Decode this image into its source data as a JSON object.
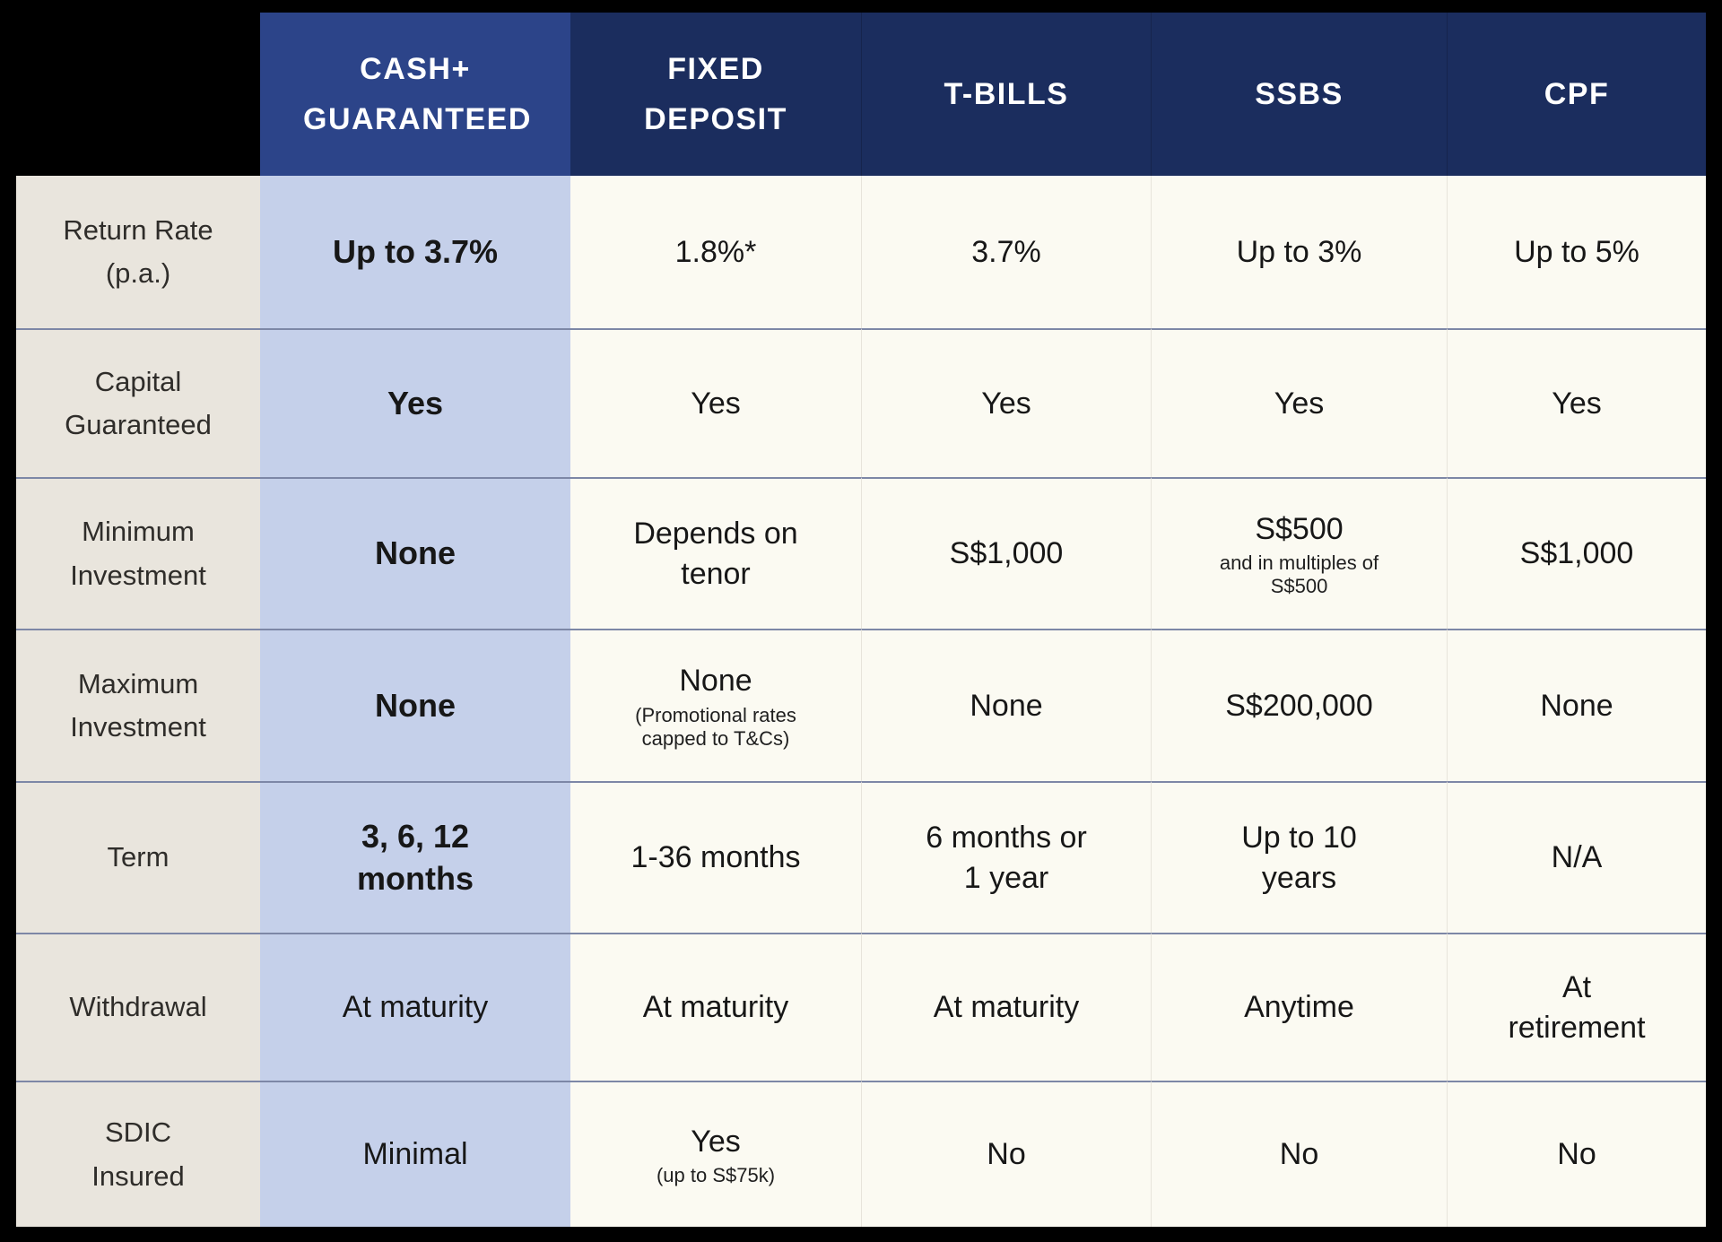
{
  "colors": {
    "header_navy": "#1b2d5e",
    "header_highlight_blue": "#2c4489",
    "highlight_column_blue": "#c5d0ea",
    "label_column_beige": "#e9e5dd",
    "cell_background_cream": "#fbfaf2",
    "row_divider": "#7d87a6",
    "background": "#000000"
  },
  "header": {
    "columns": [
      "CASH+ GUARANTEED",
      "FIXED DEPOSIT",
      "T-BILLS",
      "SSBS",
      "CPF"
    ]
  },
  "rows": [
    {
      "label": "Return Rate (p.a.)",
      "cells": [
        {
          "main": "Up to 3.7%",
          "sub": ""
        },
        {
          "main": "1.8%*",
          "sub": ""
        },
        {
          "main": "3.7%",
          "sub": ""
        },
        {
          "main": "Up to 3%",
          "sub": ""
        },
        {
          "main": "Up to 5%",
          "sub": ""
        }
      ]
    },
    {
      "label": "Capital Guaranteed",
      "cells": [
        {
          "main": "Yes",
          "sub": ""
        },
        {
          "main": "Yes",
          "sub": ""
        },
        {
          "main": "Yes",
          "sub": ""
        },
        {
          "main": "Yes",
          "sub": ""
        },
        {
          "main": "Yes",
          "sub": ""
        }
      ]
    },
    {
      "label": "Minimum Investment",
      "cells": [
        {
          "main": "None",
          "sub": ""
        },
        {
          "main": "Depends on tenor",
          "sub": ""
        },
        {
          "main": "S$1,000",
          "sub": ""
        },
        {
          "main": "S$500",
          "sub": "and in multiples of S$500"
        },
        {
          "main": "S$1,000",
          "sub": ""
        }
      ]
    },
    {
      "label": "Maximum Investment",
      "cells": [
        {
          "main": "None",
          "sub": ""
        },
        {
          "main": "None",
          "sub": "(Promotional rates capped to T&Cs)"
        },
        {
          "main": "None",
          "sub": ""
        },
        {
          "main": "S$200,000",
          "sub": ""
        },
        {
          "main": "None",
          "sub": ""
        }
      ]
    },
    {
      "label": "Term",
      "cells": [
        {
          "main": "3, 6, 12 months",
          "sub": ""
        },
        {
          "main": "1-36 months",
          "sub": ""
        },
        {
          "main": "6 months or 1 year",
          "sub": ""
        },
        {
          "main": "Up to 10 years",
          "sub": ""
        },
        {
          "main": "N/A",
          "sub": ""
        }
      ]
    },
    {
      "label": "Withdrawal",
      "cells": [
        {
          "main": "At maturity",
          "sub": ""
        },
        {
          "main": "At maturity",
          "sub": ""
        },
        {
          "main": "At maturity",
          "sub": ""
        },
        {
          "main": "Anytime",
          "sub": ""
        },
        {
          "main": "At retirement",
          "sub": ""
        }
      ]
    },
    {
      "label": "SDIC Insured",
      "cells": [
        {
          "main": "Minimal",
          "sub": ""
        },
        {
          "main": "Yes",
          "sub": "(up to S$75k)"
        },
        {
          "main": "No",
          "sub": ""
        },
        {
          "main": "No",
          "sub": ""
        },
        {
          "main": "No",
          "sub": ""
        }
      ]
    }
  ],
  "chart_data": {
    "type": "table",
    "columns": [
      "",
      "CASH+ GUARANTEED",
      "FIXED DEPOSIT",
      "T-BILLS",
      "SSBS",
      "CPF"
    ],
    "rows": [
      [
        "Return Rate (p.a.)",
        "Up to 3.7%",
        "1.8%*",
        "3.7%",
        "Up to 3%",
        "Up to 5%"
      ],
      [
        "Capital Guaranteed",
        "Yes",
        "Yes",
        "Yes",
        "Yes",
        "Yes"
      ],
      [
        "Minimum Investment",
        "None",
        "Depends on tenor",
        "S$1,000",
        "S$500 and in multiples of S$500",
        "S$1,000"
      ],
      [
        "Maximum Investment",
        "None",
        "None (Promotional rates capped to T&Cs)",
        "None",
        "S$200,000",
        "None"
      ],
      [
        "Term",
        "3, 6, 12 months",
        "1-36 months",
        "6 months or 1 year",
        "Up to 10 years",
        "N/A"
      ],
      [
        "Withdrawal",
        "At maturity",
        "At maturity",
        "At maturity",
        "Anytime",
        "At retirement"
      ],
      [
        "SDIC Insured",
        "Minimal",
        "Yes (up to S$75k)",
        "No",
        "No",
        "No"
      ]
    ],
    "layout_hints": {
      "highlighted_column": "CASH+ GUARANTEED",
      "grid": "horizontal row dividers, faint vertical column dividers",
      "legend_position": "none"
    }
  }
}
